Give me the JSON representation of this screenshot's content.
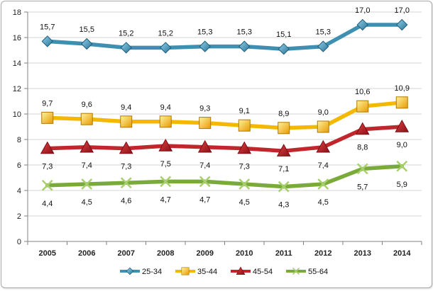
{
  "chart_data": {
    "type": "line",
    "title": "",
    "xlabel": "",
    "ylabel": "",
    "categories": [
      "2005",
      "2006",
      "2007",
      "2008",
      "2009",
      "2010",
      "2011",
      "2012",
      "2013",
      "2014"
    ],
    "ylim": [
      0,
      18
    ],
    "yticks": [
      0,
      2,
      4,
      6,
      8,
      10,
      12,
      14,
      16,
      18
    ],
    "ytick_labels": [
      "0",
      "2",
      "4",
      "6",
      "8",
      "10",
      "12",
      "14",
      "16",
      "18"
    ],
    "grid": "horizontal",
    "legend_position": "bottom",
    "series": [
      {
        "name": "25-34",
        "color": "#3e8fb0",
        "marker": "diamond",
        "values": [
          15.7,
          15.5,
          15.2,
          15.2,
          15.3,
          15.3,
          15.1,
          15.3,
          17.0,
          17.0
        ],
        "labels": [
          "15,7",
          "15,5",
          "15,2",
          "15,2",
          "15,3",
          "15,3",
          "15,1",
          "15,3",
          "17,0",
          "17,0"
        ],
        "label_position": "above"
      },
      {
        "name": "35-44",
        "color": "#f5b800",
        "marker": "square",
        "values": [
          9.7,
          9.6,
          9.4,
          9.4,
          9.3,
          9.1,
          8.9,
          9.0,
          10.6,
          10.9
        ],
        "labels": [
          "9,7",
          "9,6",
          "9,4",
          "9,4",
          "9,3",
          "9,1",
          "8,9",
          "9,0",
          "10,6",
          "10,9"
        ],
        "label_position": "above"
      },
      {
        "name": "45-54",
        "color": "#c0272d",
        "marker": "triangle",
        "values": [
          7.3,
          7.4,
          7.3,
          7.5,
          7.4,
          7.3,
          7.1,
          7.4,
          8.8,
          9.0
        ],
        "labels": [
          "7,3",
          "7,4",
          "7,3",
          "7,5",
          "7,4",
          "7,3",
          "7,1",
          "7,4",
          "8,8",
          "9,0"
        ],
        "label_position": "below"
      },
      {
        "name": "55-64",
        "color": "#7aab3a",
        "marker": "x",
        "values": [
          4.4,
          4.5,
          4.6,
          4.7,
          4.7,
          4.5,
          4.3,
          4.5,
          5.7,
          5.9
        ],
        "labels": [
          "4,4",
          "4,5",
          "4,6",
          "4,7",
          "4,7",
          "4,5",
          "4,3",
          "4,5",
          "5,7",
          "5,9"
        ],
        "label_position": "below"
      }
    ]
  }
}
